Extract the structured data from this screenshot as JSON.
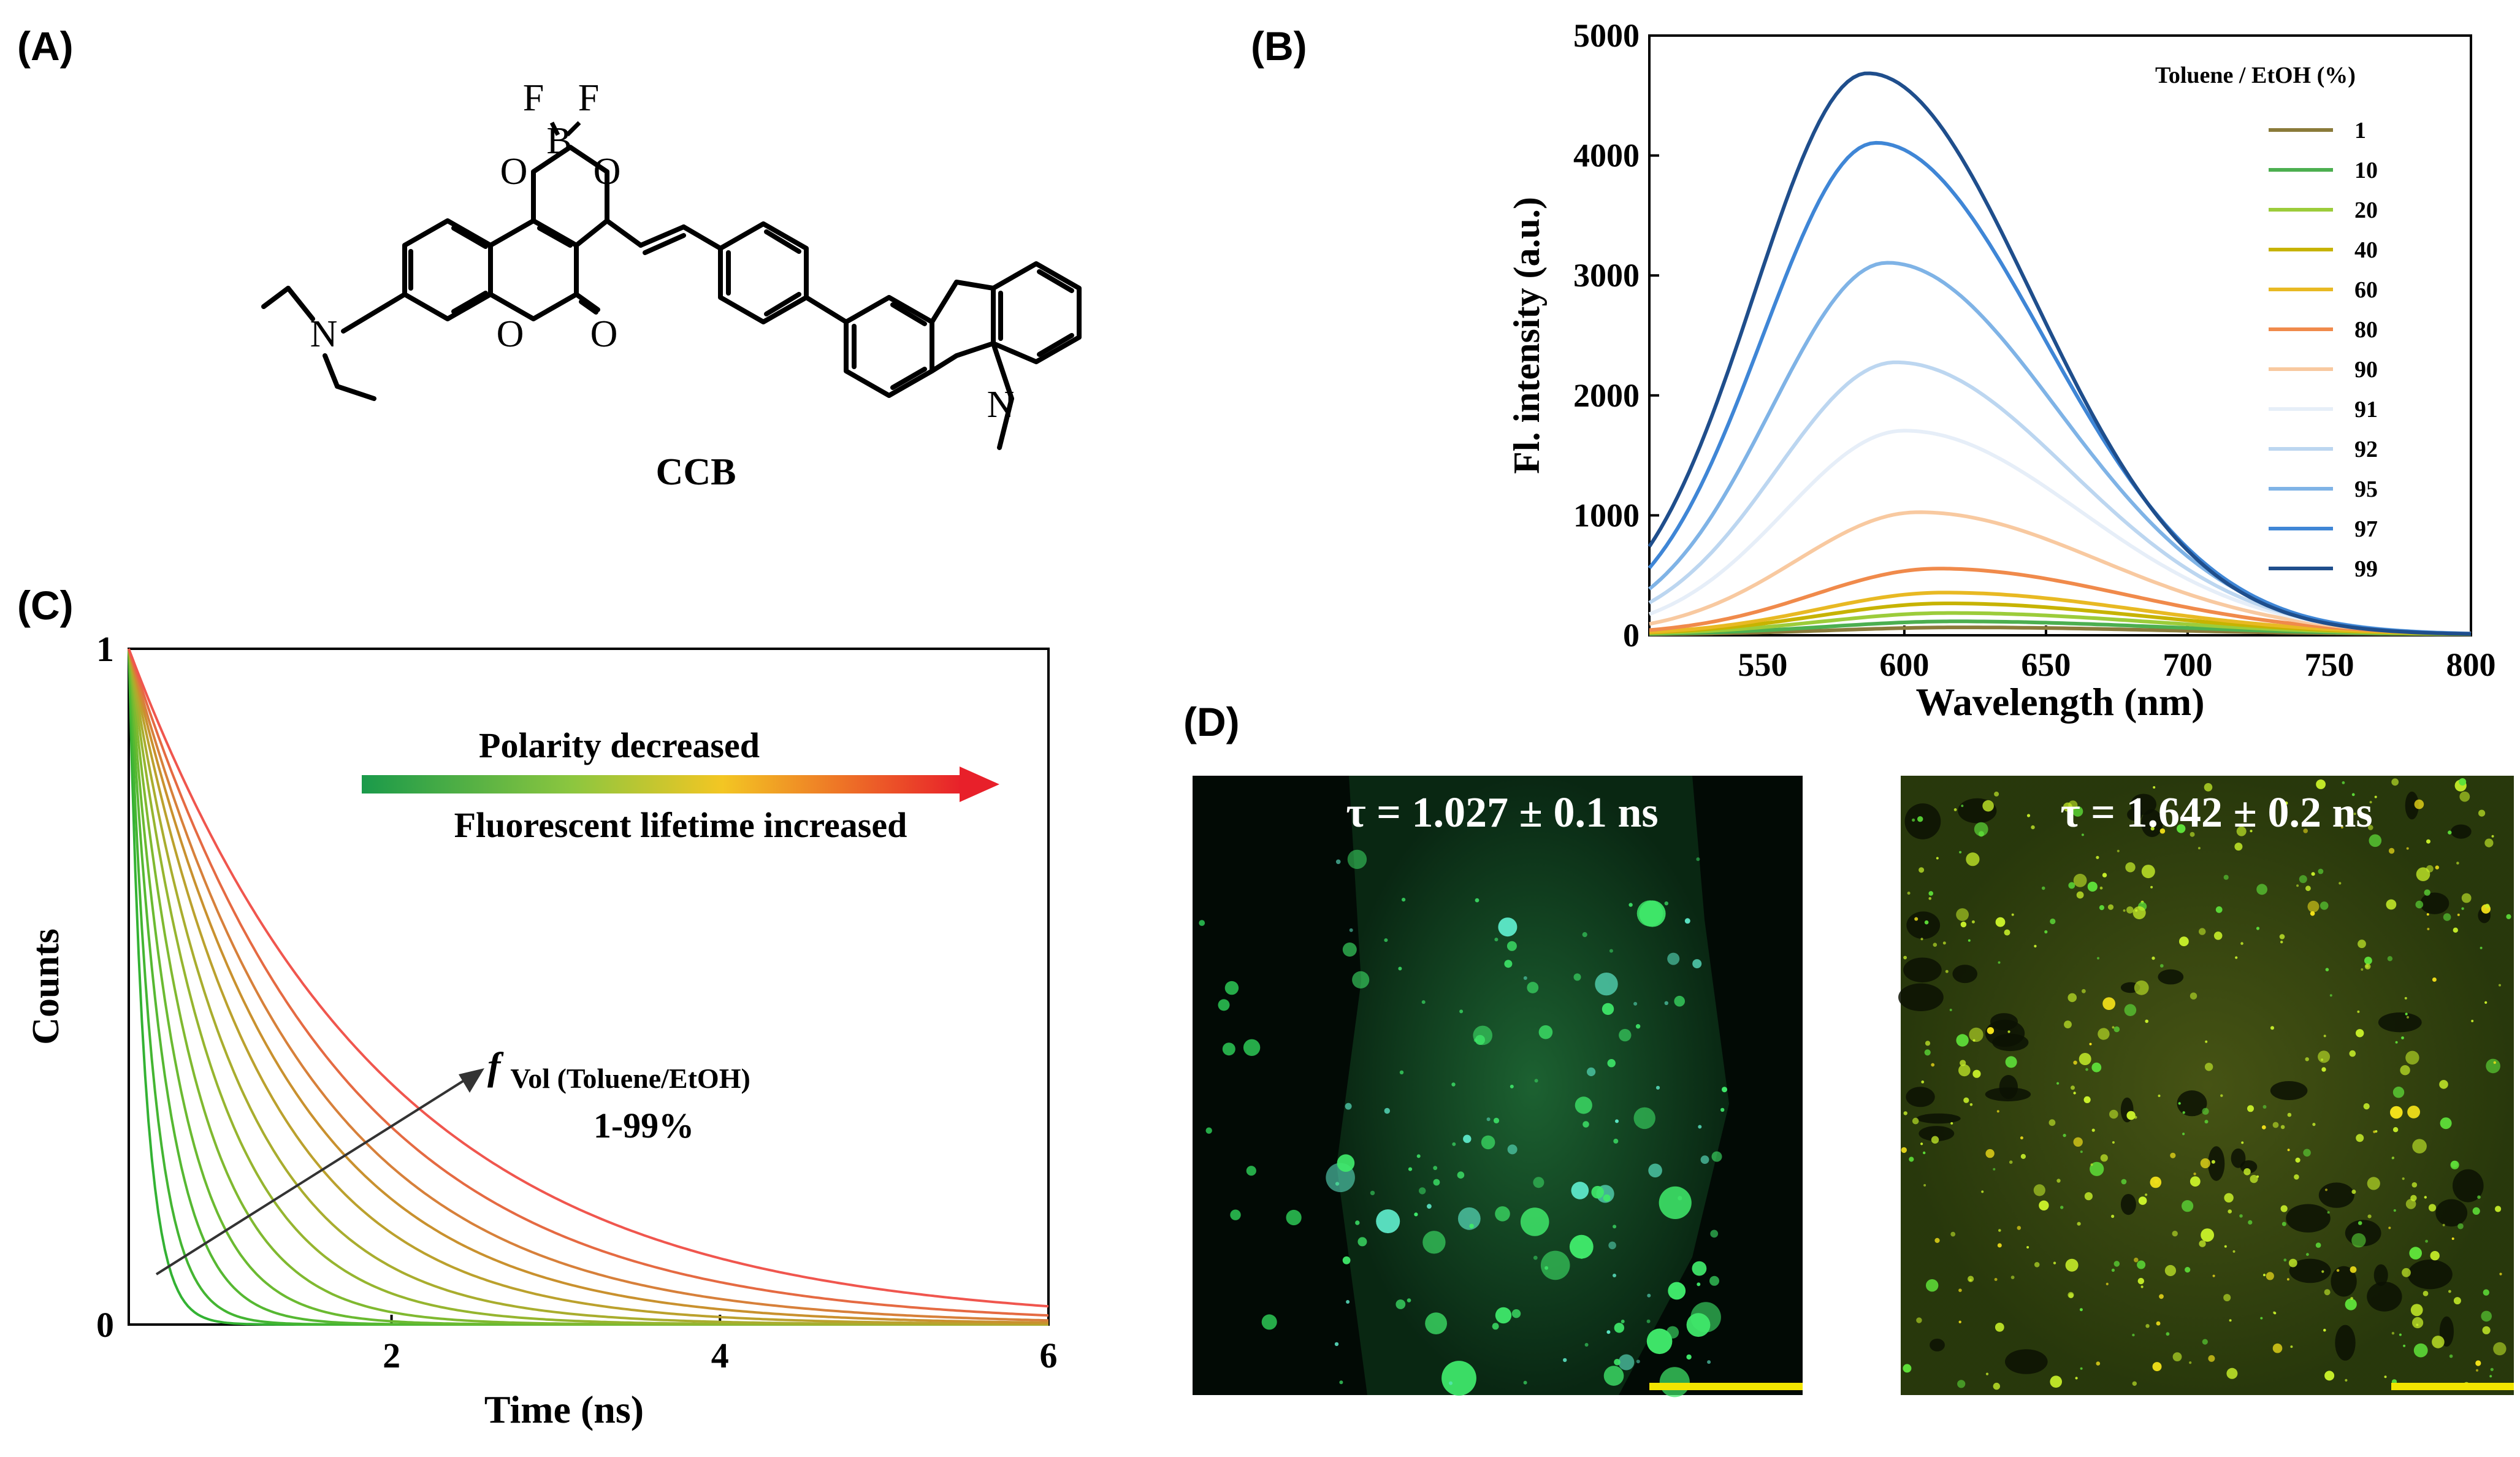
{
  "panels": {
    "a": {
      "label": "(A)",
      "compound_name": "CCB",
      "atoms": {
        "f1": "F",
        "f2": "F",
        "b": "B",
        "o_left": "O",
        "o_right": "O",
        "o_ring": "O",
        "o_carbonyl": "O",
        "n_amine": "N",
        "n_carbazole": "N"
      }
    },
    "b": {
      "label": "(B)"
    },
    "c": {
      "label": "(C)",
      "arrow_text_top": "Polarity decreased",
      "arrow_text_bottom": "Fluorescent lifetime increased",
      "annot_f": "f",
      "annot_sub": "Vol (Toluene/EtOH)",
      "annot_range": "1-99%"
    },
    "d": {
      "label": "(D)",
      "image_left_text": "τ = 1.027 ± 0.1 ns",
      "image_right_text": "τ = 1.642 ± 0.2 ns",
      "image_left_tint": "#0b3d1c",
      "image_right_tint": "#3a4a12",
      "scale_bar_color": "#f2e500"
    }
  },
  "chart_data": [
    {
      "panel": "B",
      "type": "line",
      "xlabel": "Wavelength (nm)",
      "ylabel": "Fl. intensity (a.u.)",
      "xlim": [
        510,
        800
      ],
      "ylim": [
        0,
        5000
      ],
      "xticks": [
        550,
        600,
        650,
        700,
        750,
        800
      ],
      "yticks": [
        0,
        1000,
        2000,
        3000,
        4000,
        5000
      ],
      "legend_title": "Toluene / EtOH (%)",
      "legend_position": "top-right",
      "series": [
        {
          "name": "1",
          "color": "#8a7a3a",
          "peak_x": 620,
          "peak_y": 60,
          "sigma_left": 45,
          "sigma_right": 70
        },
        {
          "name": "10",
          "color": "#4caf50",
          "peak_x": 618,
          "peak_y": 110,
          "sigma_left": 45,
          "sigma_right": 70
        },
        {
          "name": "20",
          "color": "#9ccc3a",
          "peak_x": 616,
          "peak_y": 180,
          "sigma_left": 45,
          "sigma_right": 69
        },
        {
          "name": "40",
          "color": "#c7b300",
          "peak_x": 615,
          "peak_y": 260,
          "sigma_left": 45,
          "sigma_right": 68
        },
        {
          "name": "60",
          "color": "#e8b923",
          "peak_x": 614,
          "peak_y": 350,
          "sigma_left": 44,
          "sigma_right": 67
        },
        {
          "name": "80",
          "color": "#f08a4b",
          "peak_x": 612,
          "peak_y": 550,
          "sigma_left": 44,
          "sigma_right": 66
        },
        {
          "name": "90",
          "color": "#f8c9a0",
          "peak_x": 605,
          "peak_y": 1020,
          "sigma_left": 43,
          "sigma_right": 64
        },
        {
          "name": "91",
          "color": "#e6eef8",
          "peak_x": 600,
          "peak_y": 1700,
          "sigma_left": 42,
          "sigma_right": 62
        },
        {
          "name": "92",
          "color": "#bcd6f0",
          "peak_x": 597,
          "peak_y": 2270,
          "sigma_left": 42,
          "sigma_right": 61
        },
        {
          "name": "95",
          "color": "#7fb3e6",
          "peak_x": 594,
          "peak_y": 3100,
          "sigma_left": 41,
          "sigma_right": 60
        },
        {
          "name": "97",
          "color": "#3f86d6",
          "peak_x": 590,
          "peak_y": 4100,
          "sigma_left": 40,
          "sigma_right": 59
        },
        {
          "name": "99",
          "color": "#1f4e8c",
          "peak_x": 587,
          "peak_y": 4680,
          "sigma_left": 40,
          "sigma_right": 58
        }
      ]
    },
    {
      "panel": "C",
      "type": "line",
      "xlabel": "Time (ns)",
      "ylabel": "Counts",
      "xlim": [
        0.4,
        6
      ],
      "ylim": [
        0,
        1
      ],
      "xticks": [
        2,
        4,
        6
      ],
      "yticks": [
        0,
        1
      ],
      "decay_start": 0.4,
      "series": [
        {
          "lifetime": 0.1,
          "color": "#33b233"
        },
        {
          "lifetime": 0.15,
          "color": "#44b532"
        },
        {
          "lifetime": 0.22,
          "color": "#56b832"
        },
        {
          "lifetime": 0.3,
          "color": "#6bba31"
        },
        {
          "lifetime": 0.4,
          "color": "#80b930"
        },
        {
          "lifetime": 0.52,
          "color": "#96b52f"
        },
        {
          "lifetime": 0.65,
          "color": "#a9ad2e"
        },
        {
          "lifetime": 0.8,
          "color": "#bba12d"
        },
        {
          "lifetime": 0.95,
          "color": "#c9912e"
        },
        {
          "lifetime": 1.1,
          "color": "#d7803a"
        },
        {
          "lifetime": 1.3,
          "color": "#e56a42"
        },
        {
          "lifetime": 1.55,
          "color": "#f0564e"
        }
      ]
    }
  ]
}
